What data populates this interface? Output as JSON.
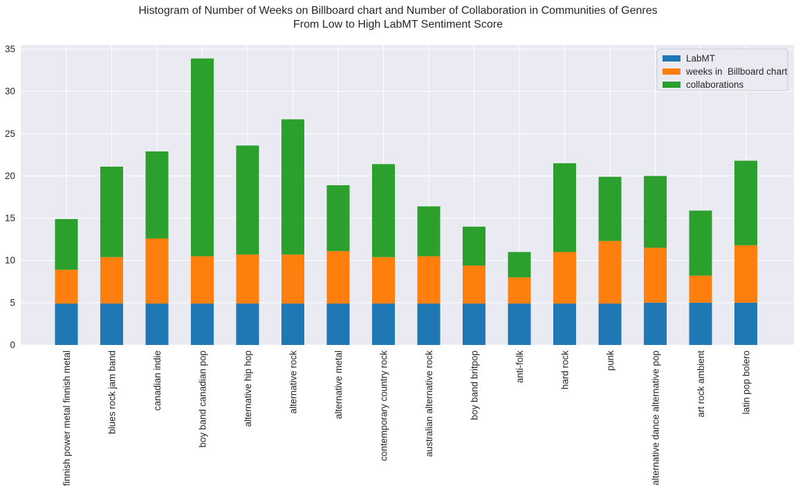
{
  "chart_data": {
    "type": "bar",
    "stacked": true,
    "title": "Histogram of Number of Weeks on Billboard chart and Number of Collaboration in Communities of Genres",
    "subtitle": "From Low to High LabMT Sentiment Score",
    "xlabel": "",
    "ylabel": "",
    "ylim": [
      0,
      35.5
    ],
    "yticks": [
      0,
      5,
      10,
      15,
      20,
      25,
      30,
      35
    ],
    "grid": true,
    "legend_position": "top-right",
    "categories": [
      "finnish power metal finnish metal",
      "blues rock jam band",
      "canadian indie",
      "boy band canadian pop",
      "alternative hip hop",
      "alternative rock",
      "alternative metal",
      "contemporary country rock",
      "australian alternative rock",
      "boy band britpop",
      "anti-folk",
      "hard rock",
      "punk",
      "alternative dance alternative pop",
      "art rock ambient",
      "latin pop bolero"
    ],
    "series": [
      {
        "name": "LabMT",
        "color": "#1f77b4",
        "values": [
          4.9,
          4.9,
          4.9,
          4.9,
          4.9,
          4.9,
          4.9,
          4.9,
          4.9,
          4.9,
          4.9,
          4.9,
          4.9,
          5.0,
          5.0,
          5.0
        ]
      },
      {
        "name": "weeks in  Billboard chart",
        "color": "#ff7f0e",
        "values": [
          4.0,
          5.5,
          7.7,
          5.6,
          5.8,
          5.8,
          6.2,
          5.5,
          5.6,
          4.5,
          3.1,
          6.1,
          7.4,
          6.5,
          3.2,
          6.8
        ]
      },
      {
        "name": "collaborations",
        "color": "#2ca02c",
        "values": [
          6.0,
          10.7,
          10.3,
          23.4,
          12.9,
          16.0,
          7.8,
          11.0,
          5.9,
          4.6,
          3.0,
          10.5,
          7.6,
          8.5,
          7.7,
          10.0
        ]
      }
    ]
  }
}
